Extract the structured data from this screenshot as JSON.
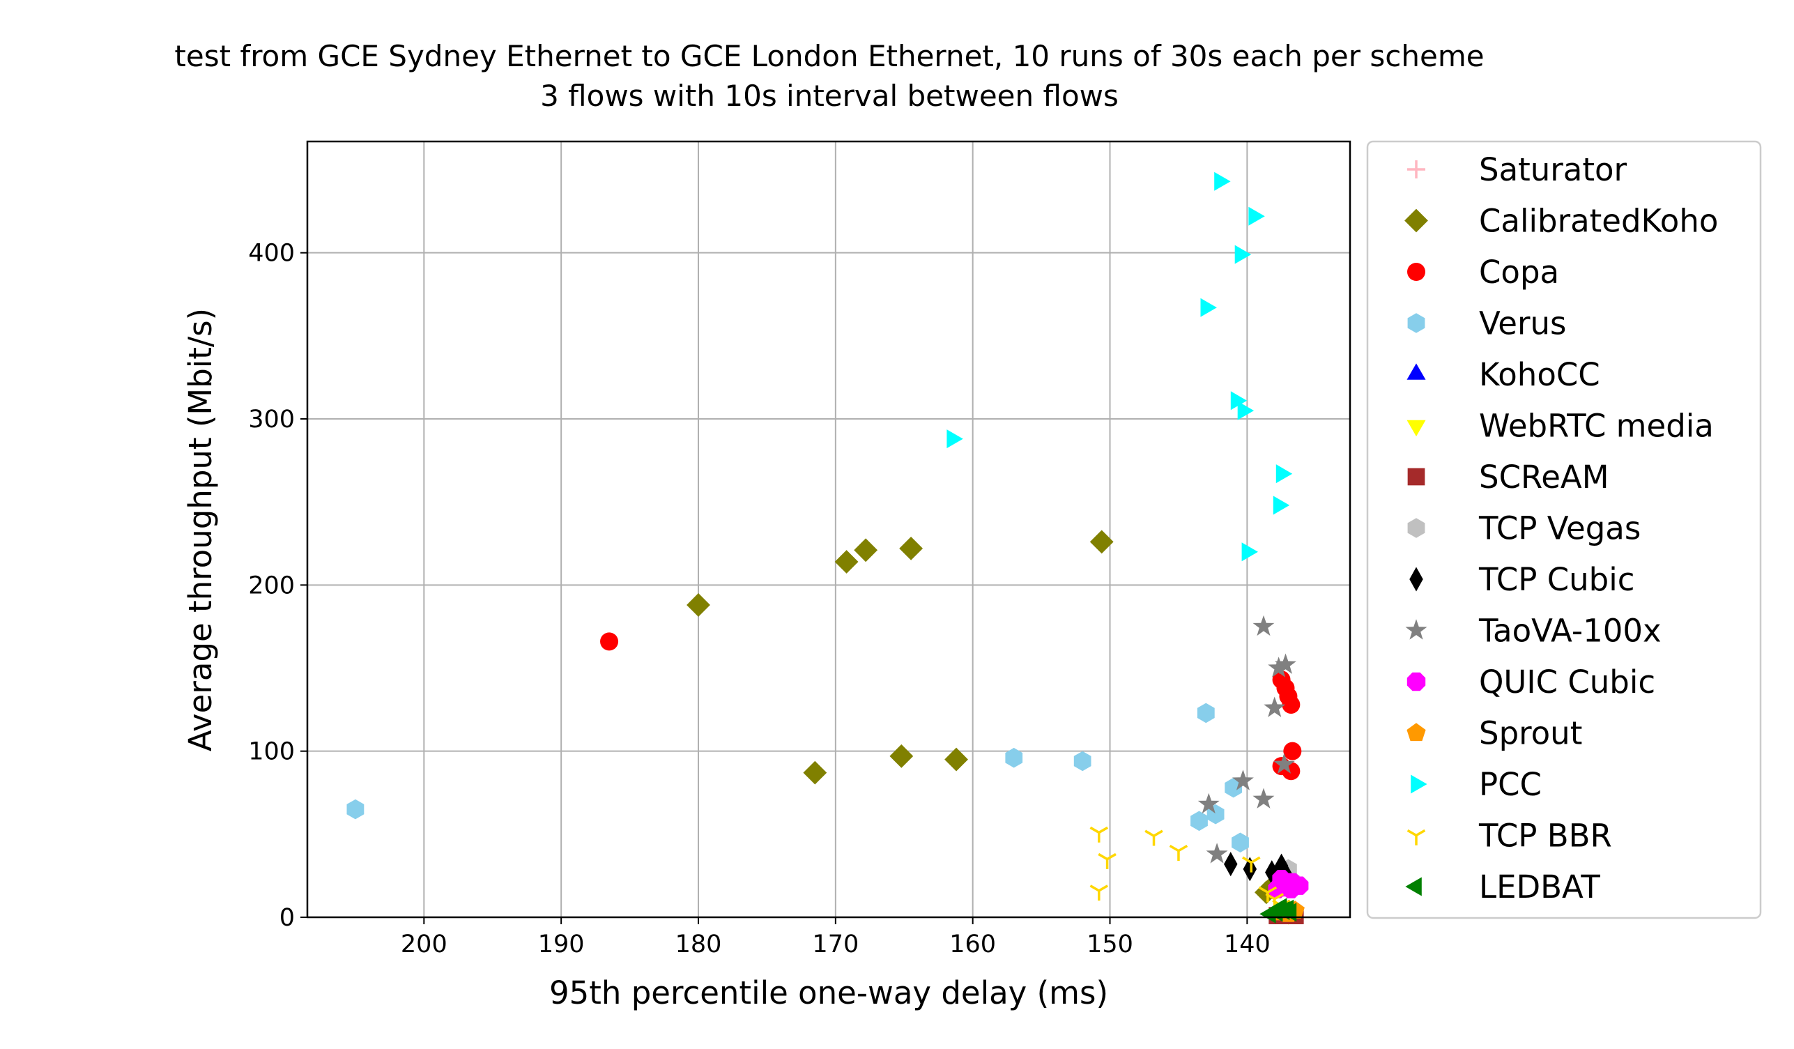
{
  "chart_data": {
    "type": "scatter",
    "title_lines": [
      "test from GCE Sydney Ethernet to GCE London Ethernet, 10 runs of 30s each per scheme",
      "3 flows with 10s interval between flows"
    ],
    "xlabel": "95th percentile one-way delay (ms)",
    "ylabel": "Average throughput (Mbit/s)",
    "xlim": [
      208.5,
      132.5
    ],
    "ylim": [
      0,
      467
    ],
    "x_inverted": true,
    "xticks": [
      200,
      190,
      180,
      170,
      160,
      150,
      140
    ],
    "yticks": [
      0,
      100,
      200,
      300,
      400
    ],
    "grid": true,
    "legend_position": "outside-right",
    "series": [
      {
        "name": "Saturator",
        "marker": "plus",
        "color": "#ffb6c1",
        "points": []
      },
      {
        "name": "CalibratedKoho",
        "marker": "diamond",
        "color": "#808000",
        "points": [
          [
            180,
            188
          ],
          [
            169.2,
            214
          ],
          [
            167.8,
            221
          ],
          [
            164.5,
            222
          ],
          [
            150.6,
            226
          ],
          [
            171.5,
            87
          ],
          [
            165.2,
            97
          ],
          [
            161.2,
            95
          ],
          [
            138.6,
            15
          ],
          [
            138.2,
            18
          ]
        ]
      },
      {
        "name": "Copa",
        "marker": "circle",
        "color": "#ff0000",
        "points": [
          [
            186.5,
            166
          ],
          [
            137.5,
            143
          ],
          [
            137.2,
            138
          ],
          [
            137,
            133
          ],
          [
            136.8,
            128
          ],
          [
            136.7,
            100
          ],
          [
            137.5,
            91
          ],
          [
            136.8,
            88
          ]
        ]
      },
      {
        "name": "Verus",
        "marker": "hexagon",
        "color": "#87ceeb",
        "points": [
          [
            205,
            65
          ],
          [
            157,
            96
          ],
          [
            152,
            94
          ],
          [
            143,
            123
          ],
          [
            141,
            78
          ],
          [
            142.3,
            62
          ],
          [
            143.5,
            58
          ],
          [
            140.5,
            45
          ]
        ]
      },
      {
        "name": "KohoCC",
        "marker": "triangle-up",
        "color": "#0000ff",
        "points": [
          [
            137.2,
            2
          ],
          [
            136.8,
            3
          ],
          [
            137,
            4
          ]
        ]
      },
      {
        "name": "WebRTC media",
        "marker": "triangle-down",
        "color": "#ffff00",
        "points": [
          [
            137.5,
            3
          ],
          [
            137,
            2
          ],
          [
            136.8,
            4
          ]
        ]
      },
      {
        "name": "SCReAM",
        "marker": "square",
        "color": "#a52a2a",
        "points": [
          [
            137.5,
            1
          ],
          [
            137,
            1
          ],
          [
            136.5,
            1
          ],
          [
            137.8,
            1
          ],
          [
            136.8,
            1
          ]
        ]
      },
      {
        "name": "TCP Vegas",
        "marker": "hexagon",
        "color": "#c0c0c0",
        "points": [
          [
            137,
            29
          ],
          [
            137.5,
            25
          ],
          [
            136.8,
            22
          ]
        ]
      },
      {
        "name": "TCP Cubic",
        "marker": "thin-diamond",
        "color": "#000000",
        "points": [
          [
            141.2,
            32
          ],
          [
            139.8,
            29
          ],
          [
            138.2,
            27
          ],
          [
            137.5,
            31
          ],
          [
            137.2,
            26
          ],
          [
            137.8,
            23
          ]
        ]
      },
      {
        "name": "TaoVA-100x",
        "marker": "star",
        "color": "#808080",
        "points": [
          [
            138.8,
            175
          ],
          [
            137.7,
            150
          ],
          [
            137.2,
            152
          ],
          [
            138,
            126
          ],
          [
            137.3,
            92
          ],
          [
            140.3,
            82
          ],
          [
            138.8,
            71
          ],
          [
            142.8,
            68
          ],
          [
            142.2,
            38
          ]
        ]
      },
      {
        "name": "QUIC Cubic",
        "marker": "octagon",
        "color": "#ff00ff",
        "points": [
          [
            137.5,
            23
          ],
          [
            136.7,
            21
          ],
          [
            136.2,
            19
          ],
          [
            137.2,
            18
          ],
          [
            137.8,
            17
          ],
          [
            136.8,
            17
          ]
        ]
      },
      {
        "name": "Sprout",
        "marker": "pentagon",
        "color": "#ff9900",
        "points": [
          [
            137.5,
            3
          ],
          [
            137,
            2
          ],
          [
            136.5,
            4
          ]
        ]
      },
      {
        "name": "PCC",
        "marker": "triangle-right",
        "color": "#00ffff",
        "points": [
          [
            142,
            443
          ],
          [
            139.5,
            422
          ],
          [
            140.5,
            399
          ],
          [
            143,
            367
          ],
          [
            140.8,
            311
          ],
          [
            140.3,
            305
          ],
          [
            161.5,
            288
          ],
          [
            137.5,
            267
          ],
          [
            137.7,
            248
          ],
          [
            140,
            220
          ]
        ]
      },
      {
        "name": "TCP BBR",
        "marker": "tri-down",
        "color": "#ffd700",
        "points": [
          [
            150.8,
            51
          ],
          [
            146.8,
            49
          ],
          [
            150.2,
            35
          ],
          [
            145,
            40
          ],
          [
            150.8,
            16
          ],
          [
            139.7,
            33
          ],
          [
            138.5,
            15
          ],
          [
            138,
            11
          ],
          [
            137.5,
            7
          ]
        ]
      },
      {
        "name": "LEDBAT",
        "marker": "triangle-left",
        "color": "#008000",
        "points": [
          [
            137.8,
            3
          ],
          [
            137.3,
            4
          ],
          [
            137,
            5
          ],
          [
            136.8,
            3
          ],
          [
            138.3,
            2
          ],
          [
            137.5,
            6
          ]
        ]
      }
    ]
  }
}
